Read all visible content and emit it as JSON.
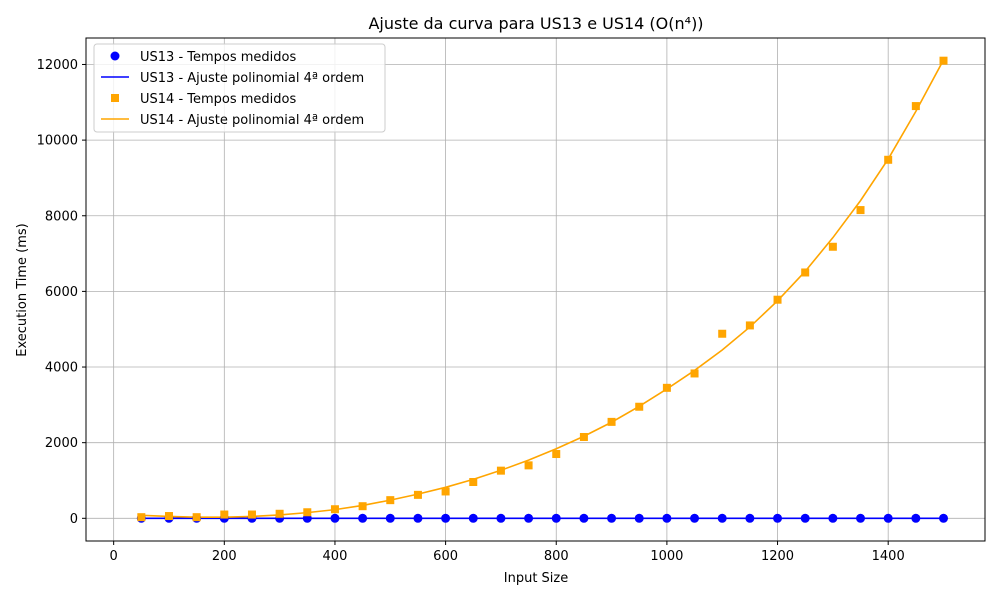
{
  "chart_data": {
    "type": "scatter",
    "title": "Ajuste da curva para US13 e US14 (O(n⁴))",
    "xlabel": "Input Size",
    "ylabel": "Execution Time (ms)",
    "xlim": [
      -50,
      1575
    ],
    "ylim": [
      -600,
      12700
    ],
    "xticks": [
      0,
      200,
      400,
      600,
      800,
      1000,
      1200,
      1400
    ],
    "yticks": [
      0,
      2000,
      4000,
      6000,
      8000,
      10000,
      12000
    ],
    "grid": true,
    "legend_position": "top-left",
    "series": [
      {
        "name": "US13 - Tempos medidos",
        "kind": "scatter",
        "marker": "circle",
        "color": "#0000ff",
        "x": [
          50,
          100,
          150,
          200,
          250,
          300,
          350,
          400,
          450,
          500,
          550,
          600,
          650,
          700,
          750,
          800,
          850,
          900,
          950,
          1000,
          1050,
          1100,
          1150,
          1200,
          1250,
          1300,
          1350,
          1400,
          1450,
          1500
        ],
        "y": [
          0,
          0,
          0,
          0,
          0,
          0,
          0,
          0,
          0,
          0,
          0,
          0,
          0,
          0,
          0,
          0,
          0,
          0,
          0,
          0,
          0,
          0,
          0,
          0,
          0,
          0,
          0,
          0,
          0,
          0
        ]
      },
      {
        "name": "US13 - Ajuste polinomial 4ª ordem",
        "kind": "line",
        "color": "#0000ff",
        "x": [
          50,
          100,
          150,
          200,
          250,
          300,
          350,
          400,
          450,
          500,
          550,
          600,
          650,
          700,
          750,
          800,
          850,
          900,
          950,
          1000,
          1050,
          1100,
          1150,
          1200,
          1250,
          1300,
          1350,
          1400,
          1450,
          1500
        ],
        "y": [
          0,
          0,
          0,
          0,
          0,
          0,
          0,
          0,
          0,
          0,
          0,
          0,
          0,
          0,
          0,
          0,
          0,
          0,
          0,
          0,
          0,
          0,
          0,
          0,
          0,
          0,
          0,
          0,
          0,
          0
        ]
      },
      {
        "name": "US14 - Tempos medidos",
        "kind": "scatter",
        "marker": "square",
        "color": "#ffa500",
        "x": [
          50,
          100,
          150,
          200,
          250,
          300,
          350,
          400,
          450,
          500,
          550,
          600,
          650,
          700,
          750,
          800,
          850,
          900,
          950,
          1000,
          1050,
          1100,
          1150,
          1200,
          1250,
          1300,
          1350,
          1400,
          1450,
          1500
        ],
        "y": [
          30,
          60,
          30,
          100,
          100,
          120,
          160,
          240,
          320,
          480,
          620,
          710,
          960,
          1260,
          1400,
          1700,
          2150,
          2550,
          2950,
          3450,
          3830,
          4880,
          5100,
          5780,
          6500,
          7180,
          8150,
          9480,
          10900,
          12100
        ]
      },
      {
        "name": "US14 - Ajuste polinomial 4ª ordem",
        "kind": "line",
        "color": "#ffa500",
        "x": [
          50,
          100,
          150,
          200,
          250,
          300,
          350,
          400,
          450,
          500,
          550,
          600,
          650,
          700,
          750,
          800,
          850,
          900,
          950,
          1000,
          1050,
          1100,
          1150,
          1200,
          1250,
          1300,
          1350,
          1400,
          1450,
          1500
        ],
        "y": [
          80,
          50,
          30,
          30,
          50,
          90,
          150,
          230,
          340,
          480,
          640,
          820,
          1030,
          1270,
          1540,
          1840,
          2170,
          2540,
          2960,
          3420,
          3910,
          4450,
          5060,
          5750,
          6530,
          7420,
          8400,
          9500,
          10760,
          12120
        ]
      }
    ]
  }
}
